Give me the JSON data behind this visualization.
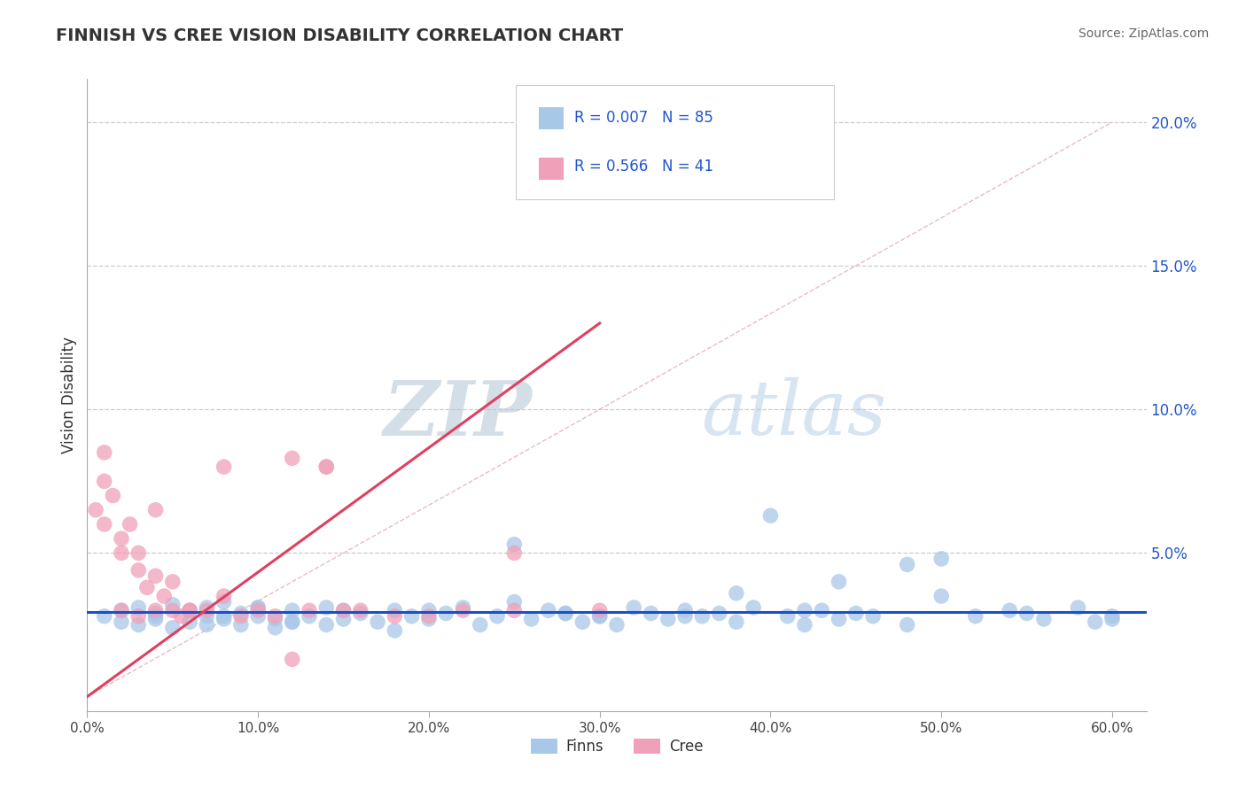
{
  "title": "FINNISH VS CREE VISION DISABILITY CORRELATION CHART",
  "source": "Source: ZipAtlas.com",
  "ylabel": "Vision Disability",
  "xlim": [
    0.0,
    0.62
  ],
  "ylim": [
    -0.005,
    0.215
  ],
  "xticks": [
    0.0,
    0.1,
    0.2,
    0.3,
    0.4,
    0.5,
    0.6
  ],
  "xticklabels": [
    "0.0%",
    "10.0%",
    "20.0%",
    "30.0%",
    "40.0%",
    "50.0%",
    "60.0%"
  ],
  "yticks": [
    0.05,
    0.1,
    0.15,
    0.2
  ],
  "yticklabels": [
    "5.0%",
    "10.0%",
    "15.0%",
    "20.0%"
  ],
  "dot_color_blue": "#a8c8e8",
  "dot_color_pink": "#f0a0b8",
  "line_color_blue": "#1a4fcc",
  "line_color_pink": "#e04060",
  "ref_line_color": "#d0b0b0",
  "watermark_zip": "ZIP",
  "watermark_atlas": "atlas",
  "background_color": "#ffffff",
  "grid_color": "#cccccc",
  "title_color": "#333333",
  "source_color": "#666666",
  "legend_color": "#2255cc",
  "finns_x": [
    0.01,
    0.02,
    0.02,
    0.03,
    0.03,
    0.04,
    0.04,
    0.05,
    0.05,
    0.06,
    0.06,
    0.07,
    0.07,
    0.08,
    0.08,
    0.09,
    0.09,
    0.1,
    0.1,
    0.11,
    0.11,
    0.12,
    0.12,
    0.13,
    0.14,
    0.14,
    0.15,
    0.16,
    0.17,
    0.18,
    0.19,
    0.2,
    0.21,
    0.22,
    0.23,
    0.24,
    0.25,
    0.26,
    0.27,
    0.28,
    0.29,
    0.3,
    0.31,
    0.32,
    0.33,
    0.34,
    0.35,
    0.36,
    0.37,
    0.38,
    0.39,
    0.4,
    0.41,
    0.42,
    0.43,
    0.44,
    0.45,
    0.46,
    0.48,
    0.5,
    0.52,
    0.54,
    0.56,
    0.58,
    0.59,
    0.6,
    0.5,
    0.44,
    0.38,
    0.28,
    0.15,
    0.1,
    0.08,
    0.18,
    0.25,
    0.35,
    0.42,
    0.48,
    0.55,
    0.6,
    0.3,
    0.2,
    0.12,
    0.07,
    0.04
  ],
  "finns_y": [
    0.028,
    0.03,
    0.026,
    0.031,
    0.025,
    0.029,
    0.027,
    0.032,
    0.024,
    0.03,
    0.026,
    0.028,
    0.031,
    0.027,
    0.033,
    0.025,
    0.029,
    0.028,
    0.031,
    0.027,
    0.024,
    0.03,
    0.026,
    0.028,
    0.025,
    0.031,
    0.027,
    0.029,
    0.026,
    0.03,
    0.028,
    0.027,
    0.029,
    0.031,
    0.025,
    0.028,
    0.053,
    0.027,
    0.03,
    0.029,
    0.026,
    0.028,
    0.025,
    0.031,
    0.029,
    0.027,
    0.03,
    0.028,
    0.029,
    0.026,
    0.031,
    0.063,
    0.028,
    0.025,
    0.03,
    0.027,
    0.029,
    0.028,
    0.025,
    0.048,
    0.028,
    0.03,
    0.027,
    0.031,
    0.026,
    0.028,
    0.035,
    0.04,
    0.036,
    0.029,
    0.03,
    0.031,
    0.028,
    0.023,
    0.033,
    0.028,
    0.03,
    0.046,
    0.029,
    0.027,
    0.028,
    0.03,
    0.026,
    0.025,
    0.028
  ],
  "cree_x": [
    0.005,
    0.01,
    0.01,
    0.015,
    0.02,
    0.02,
    0.025,
    0.03,
    0.03,
    0.035,
    0.04,
    0.04,
    0.045,
    0.05,
    0.05,
    0.055,
    0.06,
    0.07,
    0.08,
    0.09,
    0.1,
    0.11,
    0.12,
    0.13,
    0.14,
    0.15,
    0.16,
    0.18,
    0.2,
    0.22,
    0.25,
    0.3,
    0.14,
    0.08,
    0.04,
    0.06,
    0.03,
    0.02,
    0.01,
    0.12,
    0.25
  ],
  "cree_y": [
    0.065,
    0.075,
    0.06,
    0.07,
    0.055,
    0.05,
    0.06,
    0.05,
    0.044,
    0.038,
    0.042,
    0.03,
    0.035,
    0.03,
    0.04,
    0.028,
    0.03,
    0.03,
    0.035,
    0.028,
    0.03,
    0.028,
    0.083,
    0.03,
    0.08,
    0.03,
    0.03,
    0.028,
    0.028,
    0.03,
    0.05,
    0.03,
    0.08,
    0.08,
    0.065,
    0.03,
    0.028,
    0.03,
    0.085,
    0.013,
    0.03
  ],
  "cree_trend_x0": 0.0,
  "cree_trend_y0": 0.0,
  "cree_trend_x1": 0.3,
  "cree_trend_y1": 0.13,
  "finns_trend_y": 0.028,
  "ref_line_x": [
    0.0,
    0.6
  ],
  "ref_line_y": [
    0.0,
    0.2
  ]
}
